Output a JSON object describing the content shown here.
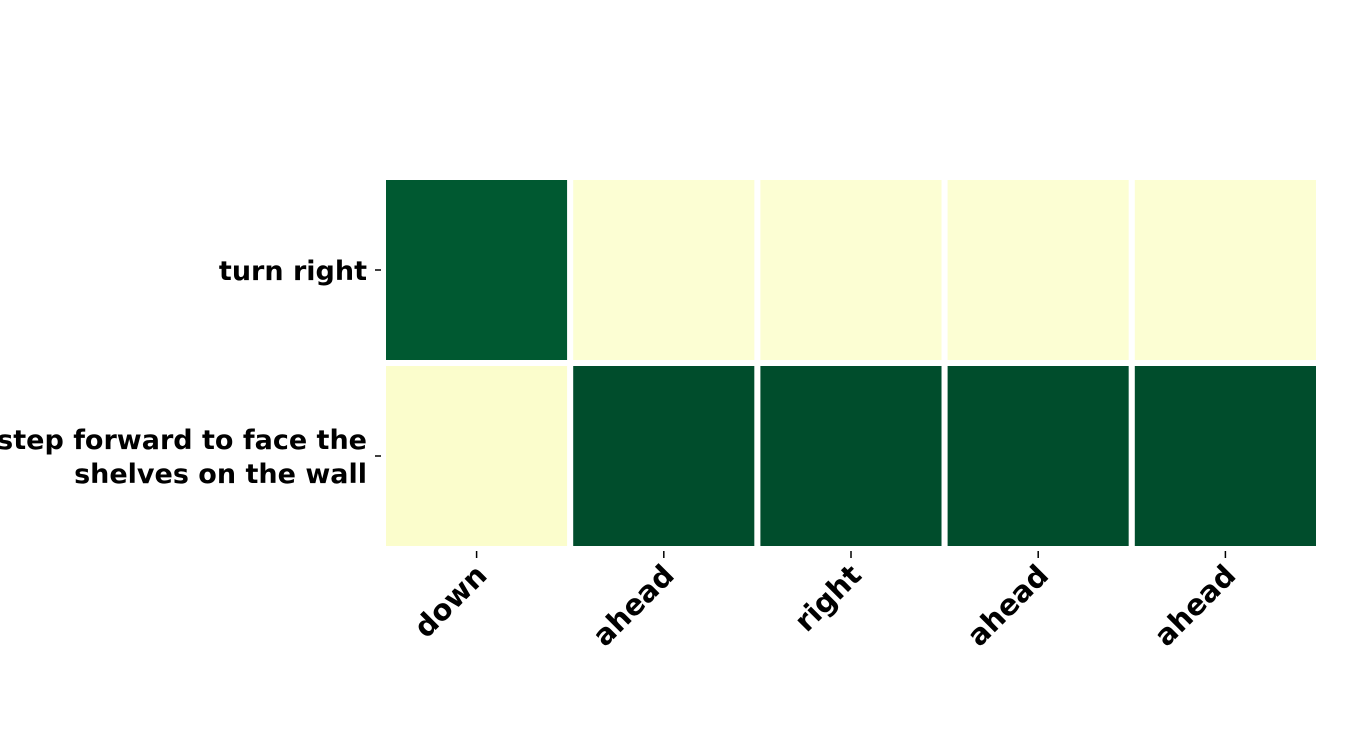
{
  "chart_data": {
    "type": "heatmap",
    "title": "",
    "xlabel": "",
    "ylabel": "",
    "x_categories": [
      "down",
      "ahead",
      "right",
      "ahead",
      "ahead"
    ],
    "y_categories": [
      [
        "turn right"
      ],
      [
        "step forward to face the",
        "shelves on the wall"
      ]
    ],
    "values": [
      [
        0.93,
        0.05,
        0.05,
        0.05,
        0.05
      ],
      [
        0.07,
        0.97,
        0.97,
        0.97,
        0.97
      ]
    ],
    "value_range": [
      0,
      1
    ],
    "colormap": "YlGn",
    "colorbar": false,
    "cell_border_color": "#ffffff"
  }
}
